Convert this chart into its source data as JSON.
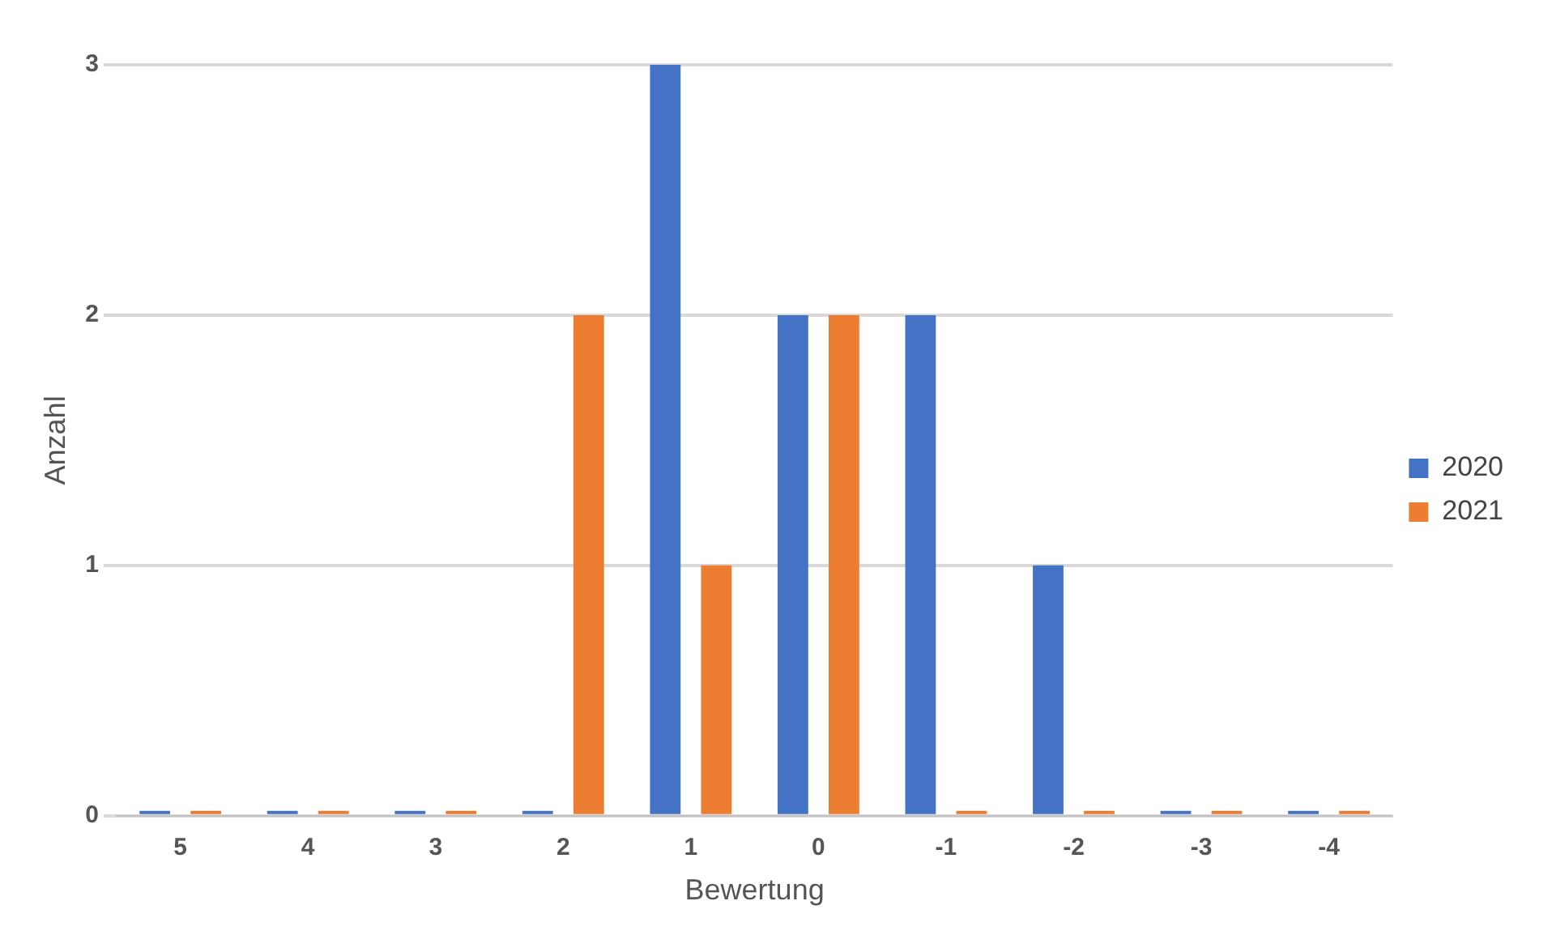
{
  "chart_data": {
    "type": "bar",
    "xlabel": "Bewertung",
    "ylabel": "Anzahl",
    "categories": [
      "5",
      "4",
      "3",
      "2",
      "1",
      "0",
      "-1",
      "-2",
      "-3",
      "-4"
    ],
    "series": [
      {
        "name": "2020",
        "color": "#4472c4",
        "values": [
          0,
          0,
          0,
          0,
          3,
          2,
          2,
          1,
          0,
          0
        ]
      },
      {
        "name": "2021",
        "color": "#ed7d31",
        "values": [
          0,
          0,
          0,
          2,
          1,
          2,
          0,
          0,
          0,
          0
        ]
      }
    ],
    "ylim": [
      0,
      3
    ],
    "yticks": [
      0,
      1,
      2,
      3
    ],
    "grid": "y",
    "legend": "right"
  }
}
